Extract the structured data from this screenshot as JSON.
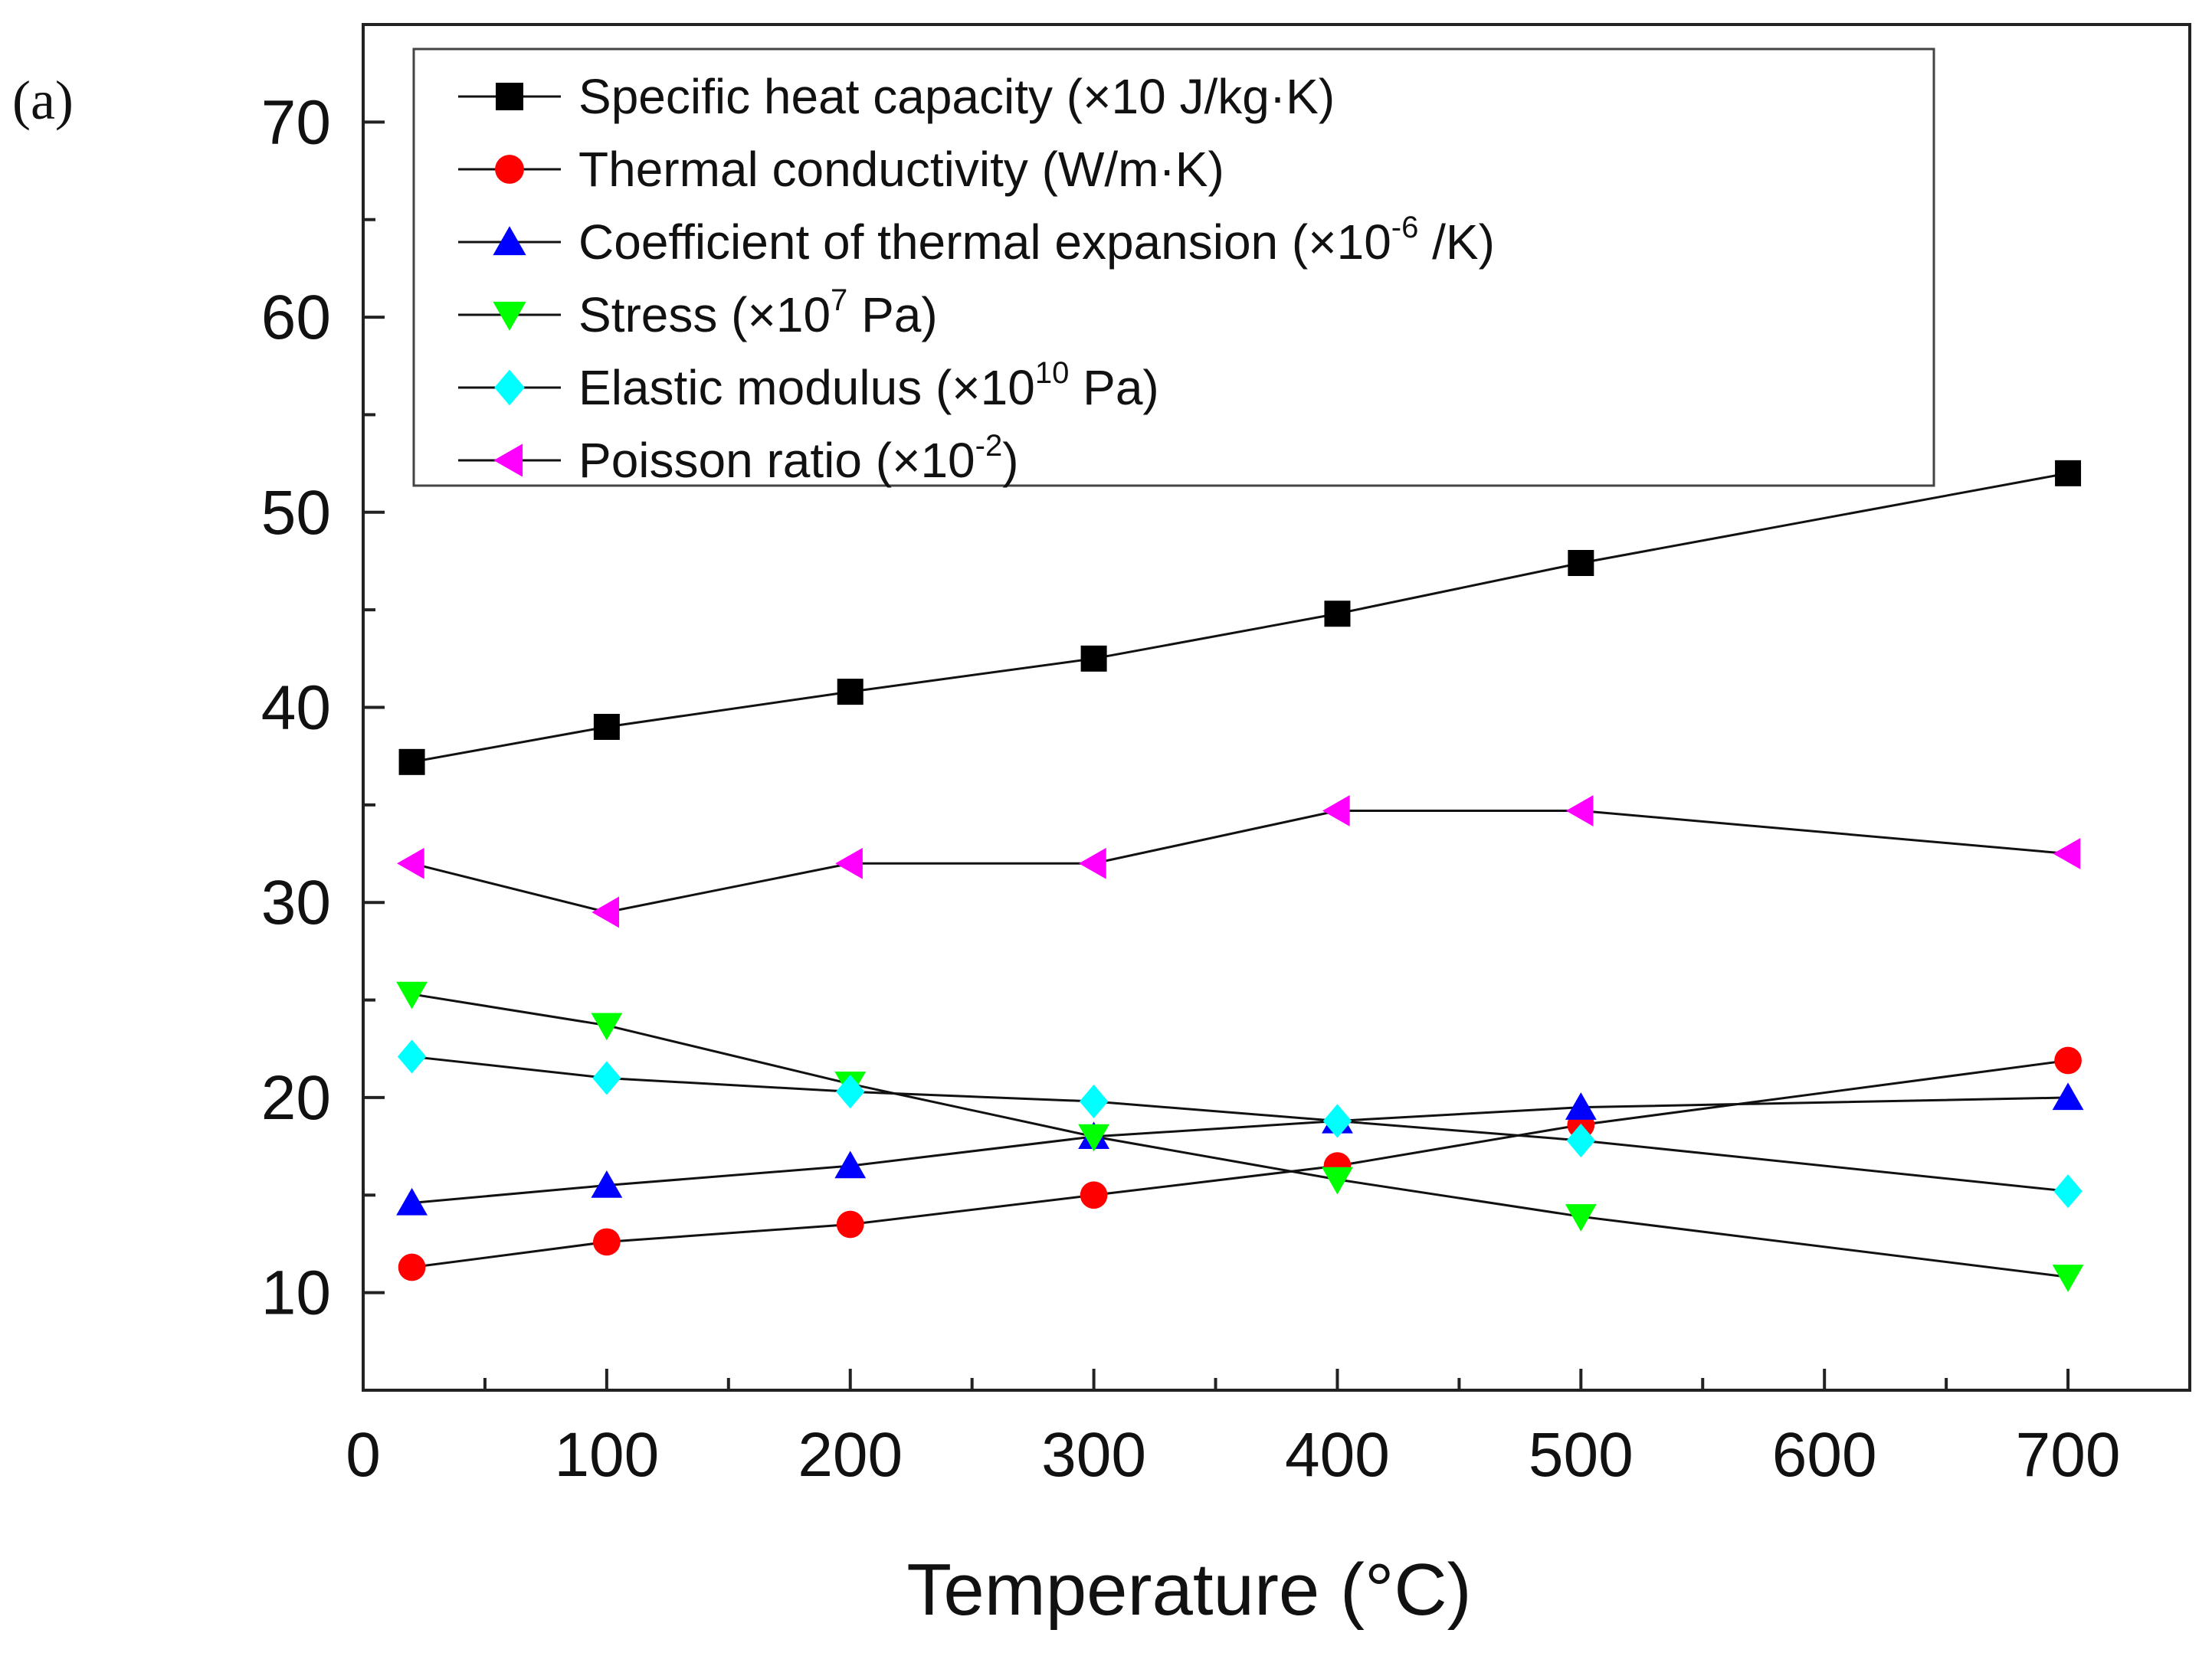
{
  "panel_label": "(a)",
  "chart_data": {
    "type": "line",
    "title": "",
    "xlabel": "Temperature (°C)",
    "ylabel": "",
    "xlim": [
      0,
      750
    ],
    "ylim": [
      5,
      75
    ],
    "xticks": [
      0,
      100,
      200,
      300,
      400,
      500,
      600,
      700
    ],
    "xtick_labels": [
      "0",
      "100",
      "200",
      "300",
      "400",
      "500",
      "600",
      "700"
    ],
    "yticks": [
      10,
      20,
      30,
      40,
      50,
      60,
      70
    ],
    "ytick_labels": [
      "10",
      "20",
      "30",
      "40",
      "50",
      "60",
      "70"
    ],
    "legend_position": "top",
    "x": [
      20,
      100,
      200,
      300,
      400,
      500,
      700
    ],
    "series": [
      {
        "name": "Specific heat capacity",
        "legend_main": "Specific heat capacity  (×10  J/kg·K)",
        "legend_sup": "",
        "legend_tail": "",
        "marker": "square",
        "color": "#000000",
        "values": [
          37.2,
          39.0,
          40.8,
          42.5,
          44.8,
          47.4,
          52.0
        ]
      },
      {
        "name": "Thermal conductivity",
        "legend_main": "Thermal conductivity (W/m·K)",
        "legend_sup": "",
        "legend_tail": "",
        "marker": "circle",
        "color": "#ff0000",
        "values": [
          11.3,
          12.6,
          13.5,
          15.0,
          16.5,
          18.6,
          21.9
        ]
      },
      {
        "name": "Coefficient of thermal expansion",
        "legend_main": "Coefficient of thermal expansion (×10",
        "legend_sup": "-6",
        "legend_tail": " /K)",
        "marker": "triangle-up",
        "color": "#0000ff",
        "values": [
          14.6,
          15.5,
          16.5,
          18.0,
          18.8,
          19.5,
          20.0
        ]
      },
      {
        "name": "Stress",
        "legend_main": "Stress (×10",
        "legend_sup": "7",
        "legend_tail": " Pa)",
        "marker": "triangle-down",
        "color": "#00ff00",
        "values": [
          25.3,
          23.7,
          20.7,
          18.0,
          15.8,
          13.9,
          10.8
        ]
      },
      {
        "name": "Elastic modulus",
        "legend_main": "Elastic modulus (×10",
        "legend_sup": "10",
        "legend_tail": " Pa)",
        "marker": "diamond",
        "color": "#00ffff",
        "values": [
          22.1,
          21.0,
          20.3,
          19.8,
          18.8,
          17.8,
          15.2
        ]
      },
      {
        "name": "Poisson ratio",
        "legend_main": "Poisson ratio (×10",
        "legend_sup": "-2",
        "legend_tail": ")",
        "marker": "triangle-left",
        "color": "#ff00ff",
        "values": [
          32.0,
          29.5,
          32.0,
          32.0,
          34.7,
          34.7,
          32.5
        ]
      }
    ]
  }
}
